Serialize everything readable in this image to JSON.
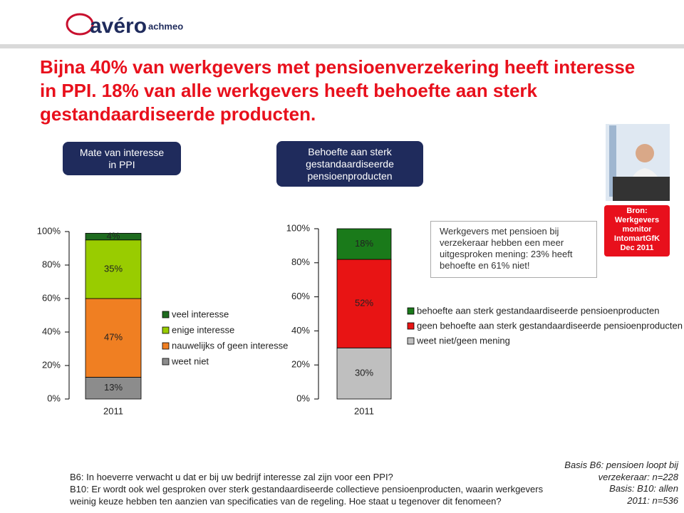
{
  "logo": {
    "name": "avéro",
    "sub": "achmeo"
  },
  "title": [
    "Bijna 40% van werkgevers met pensioenverzekering heeft interesse",
    "in PPI. 18% van alle werkgevers heeft behoefte aan sterk",
    "gestandaardiseerde producten."
  ],
  "boxes": [
    [
      "Mate van interesse",
      "in PPI"
    ],
    [
      "Behoefte aan sterk",
      "gestandaardiseerde",
      "pensioenproducten"
    ]
  ],
  "note": [
    "Werkgevers met pensioen bij",
    "verzekeraar hebben een meer",
    "uitgesproken mening: 23% heeft",
    "behoefte en 61% niet!"
  ],
  "source": [
    "Bron:",
    "Werkgevers",
    "monitor",
    "IntomartGfK",
    "Dec 2011"
  ],
  "footnotes": [
    "B6: In hoeverre verwacht u dat er bij uw bedrijf interesse zal zijn voor een PPI?",
    "B10: Er wordt ook wel gesproken over sterk gestandaardiseerde collectieve pensioenproducten, waarin werkgevers",
    "weinig keuze hebben ten aanzien van specificaties van de regeling. Hoe staat u tegenover dit fenomeen?"
  ],
  "basis": [
    "Basis B6: pensioen loopt bij",
    "verzekeraar: n=228",
    "Basis: B10: allen",
    "2011: n=536"
  ],
  "chart_data": [
    {
      "type": "stacked_bar",
      "categories": [
        "2011"
      ],
      "legend": "right",
      "series": [
        {
          "name": "weet niet",
          "color": "#8c8c8c",
          "values": [
            13
          ],
          "value_labels": [
            "13%"
          ]
        },
        {
          "name": "nauwelijks of geen interesse",
          "color": "#f07f22",
          "values": [
            47
          ],
          "value_labels": [
            "47%"
          ]
        },
        {
          "name": "enige interesse",
          "color": "#99cc00",
          "values": [
            35
          ],
          "value_labels": [
            "35%"
          ]
        },
        {
          "name": "veel interesse",
          "color": "#1e6b1e",
          "values": [
            4
          ],
          "value_labels": [
            "4%"
          ]
        }
      ],
      "ylim": [
        0,
        100
      ],
      "yticks": [
        {
          "value": 0,
          "label": "0%"
        },
        {
          "value": 20,
          "label": "20%"
        },
        {
          "value": 40,
          "label": "40%"
        },
        {
          "value": 60,
          "label": "60%"
        },
        {
          "value": 80,
          "label": "80%"
        },
        {
          "value": 100,
          "label": "100%"
        }
      ]
    },
    {
      "type": "stacked_bar",
      "categories": [
        "2011"
      ],
      "legend": "right",
      "series": [
        {
          "name": "weet niet/geen mening",
          "color": "#bfbfbf",
          "values": [
            30
          ],
          "value_labels": [
            "30%"
          ]
        },
        {
          "name": "geen behoefte aan sterk gestandaardiseerde pensioenproducten",
          "color": "#e81414",
          "values": [
            52
          ],
          "value_labels": [
            "52%"
          ]
        },
        {
          "name": "behoefte aan sterk gestandaardiseerde pensioenproducten",
          "color": "#1a7a1a",
          "values": [
            18
          ],
          "value_labels": [
            "18%"
          ]
        }
      ],
      "ylim": [
        0,
        100
      ],
      "yticks": [
        {
          "value": 0,
          "label": "0%"
        },
        {
          "value": 20,
          "label": "20%"
        },
        {
          "value": 40,
          "label": "40%"
        },
        {
          "value": 60,
          "label": "60%"
        },
        {
          "value": 80,
          "label": "80%"
        },
        {
          "value": 100,
          "label": "100%"
        }
      ]
    }
  ]
}
